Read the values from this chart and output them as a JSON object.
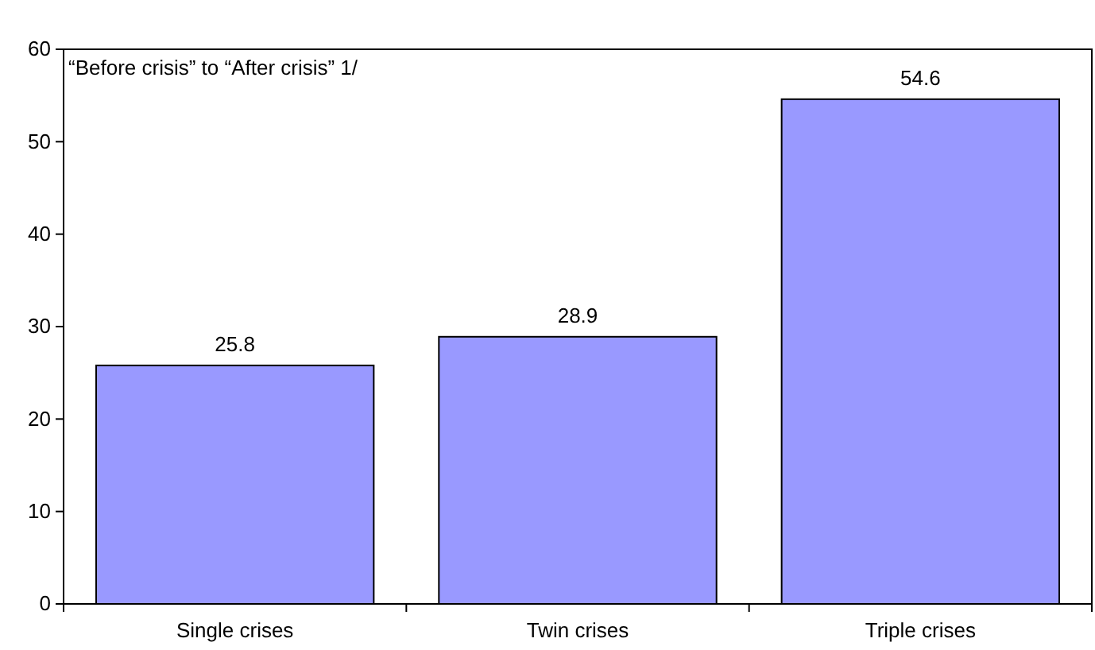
{
  "chart_data": {
    "type": "bar",
    "categories": [
      "Single crises",
      "Twin crises",
      "Triple crises"
    ],
    "values": [
      25.8,
      28.9,
      54.6
    ],
    "color": "#9999ff",
    "ylim": [
      0,
      60
    ],
    "yticks": [
      0,
      10,
      20,
      30,
      40,
      50,
      60
    ],
    "data_labels": true,
    "annotations": [
      "“Before crisis” to “After crisis” 1/"
    ]
  }
}
